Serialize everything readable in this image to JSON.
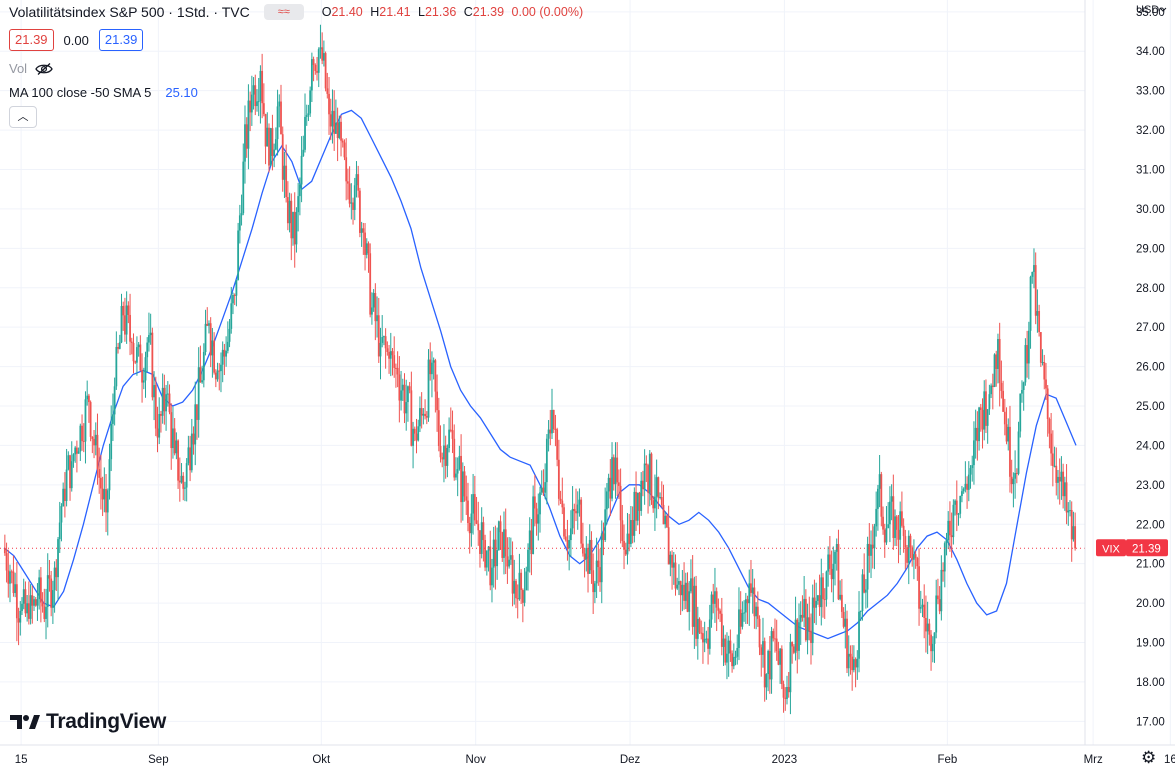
{
  "header": {
    "title": "Volatilitätsindex S&P 500 · 1Std. · TVC",
    "compare_icon": "wave-compare-icon",
    "ohlc": [
      {
        "key": "O",
        "value": "21.40"
      },
      {
        "key": "H",
        "value": "21.41"
      },
      {
        "key": "L",
        "value": "21.36"
      },
      {
        "key": "C",
        "value": "21.39"
      },
      {
        "key": "",
        "value": "0.00 (0.00%)"
      }
    ]
  },
  "price_row": {
    "bid": "21.39",
    "change": "0.00",
    "ask": "21.39"
  },
  "volume": {
    "label": "Vol",
    "icon": "eye-crossed-icon"
  },
  "indicator": {
    "label": "MA 100 close -50 SMA 5",
    "value": "25.10"
  },
  "collapse_icon": "chevron-up-icon",
  "logo": {
    "text": "TradingView",
    "icon": "tradingview-logo-icon"
  },
  "settings_icon": "gear-icon",
  "colors": {
    "up": "#26a69a",
    "down": "#ef5350",
    "ma": "#2962ff",
    "last_price": "#f23645",
    "grid": "#f0f3fa"
  },
  "chart_data": {
    "type": "candlestick",
    "currency": "USD",
    "symbol_label": "VIX",
    "last_price": "21.39",
    "y_ticks": [
      "17.00",
      "18.00",
      "19.00",
      "20.00",
      "21.00",
      "22.00",
      "23.00",
      "24.00",
      "25.00",
      "26.00",
      "27.00",
      "28.00",
      "29.00",
      "30.00",
      "31.00",
      "32.00",
      "33.00",
      "34.00",
      "35.00"
    ],
    "ylim": [
      16.4,
      35.3
    ],
    "x_ticks": [
      "15",
      "Sep",
      "Okt",
      "Nov",
      "Dez",
      "2023",
      "Feb",
      "Mrz",
      "16"
    ],
    "x_tick_index": [
      2,
      18,
      37,
      55,
      73,
      91,
      110,
      127,
      136
    ],
    "series": [
      {
        "name": "VIX",
        "close": [
          21.4,
          20.8,
          19.8,
          19.6,
          20.1,
          19.9,
          20.9,
          22.9,
          23.6,
          24.5,
          25.1,
          23.4,
          22.3,
          25.5,
          27.3,
          26.6,
          25.9,
          26.8,
          24.2,
          25.3,
          23.8,
          22.9,
          24.3,
          25.6,
          27.1,
          25.9,
          26.4,
          27.8,
          31.2,
          32.9,
          33.5,
          31.1,
          32.6,
          30.3,
          29.1,
          31.5,
          33.8,
          34.1,
          32.4,
          31.8,
          30.7,
          30.6,
          29.4,
          27.5,
          26.6,
          26.2,
          25.8,
          25.1,
          24.3,
          24.8,
          26.1,
          23.7,
          24.4,
          23.4,
          22.6,
          22.1,
          21.6,
          20.9,
          21.8,
          21.1,
          20.1,
          20.8,
          22.4,
          22.8,
          24.9,
          22.6,
          21.6,
          22.5,
          21.4,
          20.5,
          21.6,
          23.7,
          22.1,
          21.5,
          22.8,
          23.5,
          22.7,
          22.0,
          20.9,
          20.2,
          20.3,
          19.6,
          19.1,
          20.3,
          19.1,
          18.4,
          19.4,
          20.5,
          19.6,
          18.2,
          19.1,
          17.6,
          18.9,
          19.7,
          19.3,
          20.2,
          20.8,
          21.3,
          19.4,
          18.3,
          19.8,
          21.2,
          22.9,
          21.9,
          22.2,
          21.7,
          21.1,
          19.9,
          19.2,
          20.1,
          21.6,
          22.6,
          22.9,
          23.5,
          24.9,
          25.3,
          26.7,
          24.1,
          23.3,
          25.6,
          28.4,
          26.1,
          24.3,
          23.2,
          22.3,
          21.39
        ]
      },
      {
        "name": "MA",
        "values": [
          21.4,
          21.2,
          20.8,
          20.4,
          20.0,
          19.9,
          20.3,
          21.1,
          22.0,
          23.0,
          24.0,
          24.8,
          25.5,
          25.8,
          25.9,
          25.8,
          25.2,
          25.0,
          25.1,
          25.4,
          25.9,
          26.5,
          27.2,
          27.9,
          28.7,
          29.5,
          30.4,
          31.2,
          31.6,
          31.2,
          30.5,
          30.7,
          31.3,
          31.9,
          32.4,
          32.5,
          32.3,
          31.8,
          31.3,
          30.8,
          30.2,
          29.5,
          28.5,
          27.7,
          26.9,
          26.0,
          25.4,
          25.0,
          24.7,
          24.3,
          23.9,
          23.7,
          23.6,
          23.5,
          23.0,
          22.4,
          21.7,
          21.2,
          21.0,
          21.2,
          21.6,
          22.2,
          22.8,
          23.0,
          23.0,
          22.8,
          22.5,
          22.2,
          22.0,
          22.1,
          22.3,
          22.1,
          21.8,
          21.4,
          20.9,
          20.4,
          20.1,
          20.0,
          19.8,
          19.6,
          19.4,
          19.3,
          19.2,
          19.1,
          19.2,
          19.3,
          19.5,
          19.8,
          20.0,
          20.2,
          20.5,
          20.9,
          21.4,
          21.7,
          21.8,
          21.6,
          21.1,
          20.5,
          20.0,
          19.7,
          19.8,
          20.5,
          21.9,
          23.3,
          24.5,
          25.3,
          25.2,
          24.6,
          24.0
        ]
      }
    ]
  }
}
